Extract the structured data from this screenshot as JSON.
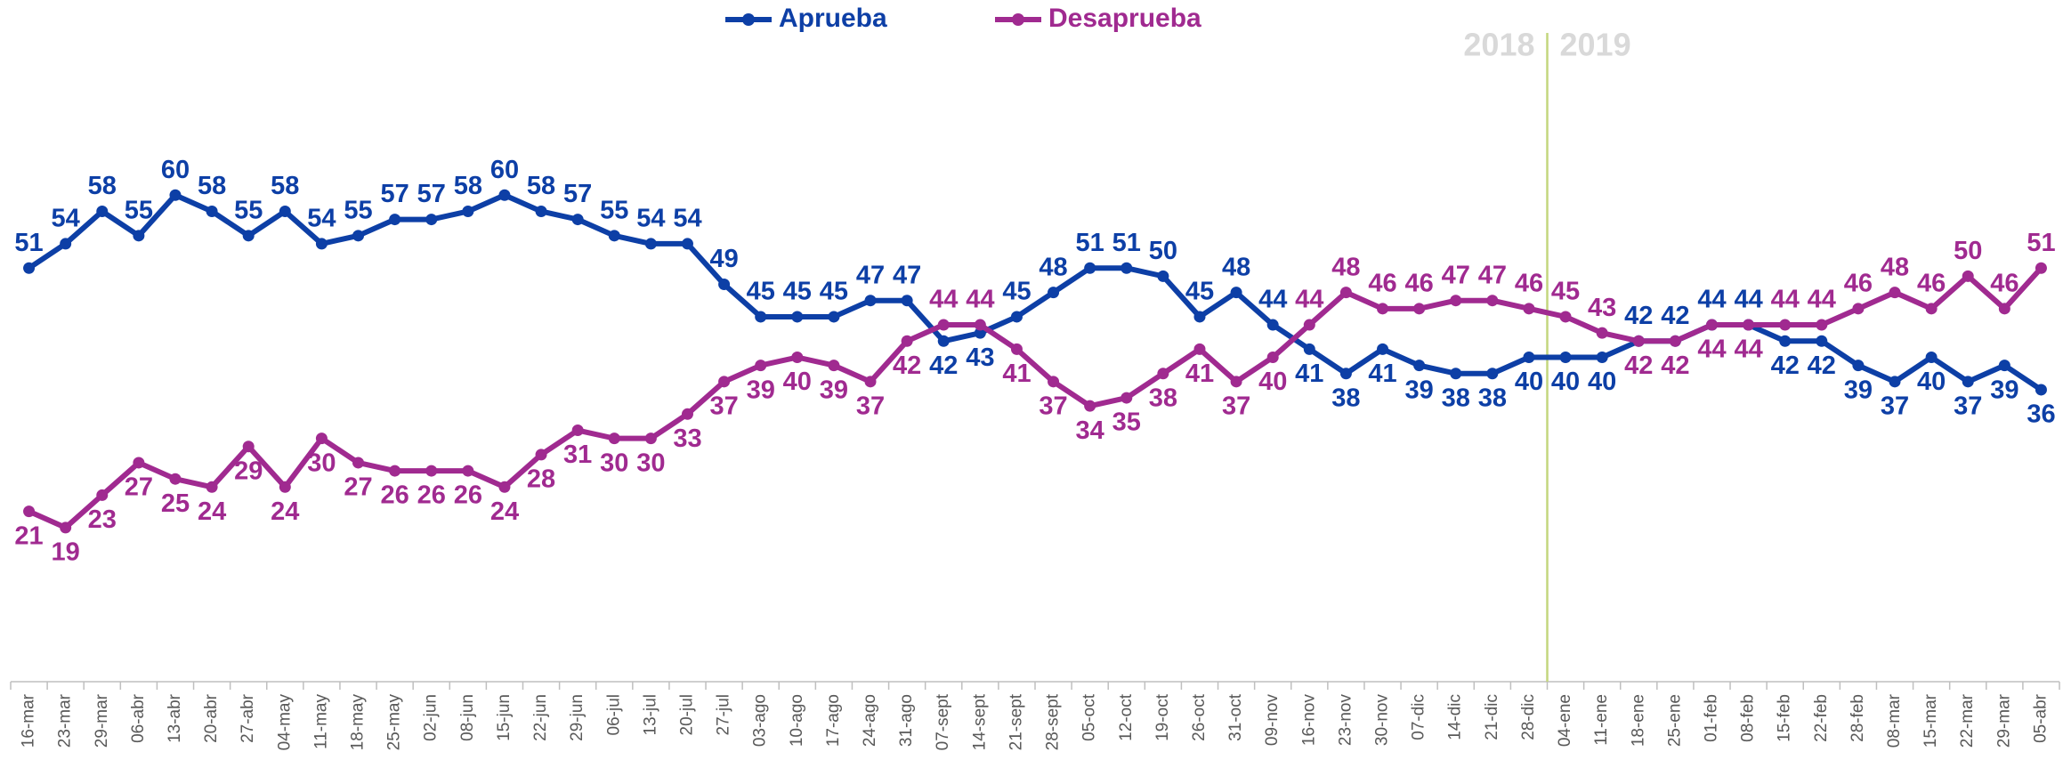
{
  "chart_data": {
    "type": "line",
    "categories": [
      "16-mar",
      "23-mar",
      "29-mar",
      "06-abr",
      "13-abr",
      "20-abr",
      "27-abr",
      "04-may",
      "11-may",
      "18-may",
      "25-may",
      "02-jun",
      "08-jun",
      "15-jun",
      "22-jun",
      "29-jun",
      "06-jul",
      "13-jul",
      "20-jul",
      "27-jul",
      "03-ago",
      "10-ago",
      "17-ago",
      "24-ago",
      "31-ago",
      "07-sept",
      "14-sept",
      "21-sept",
      "28-sept",
      "05-oct",
      "12-oct",
      "19-oct",
      "26-oct",
      "31-oct",
      "09-nov",
      "16-nov",
      "23-nov",
      "30-nov",
      "07-dic",
      "14-dic",
      "21-dic",
      "28-dic",
      "04-ene",
      "11-ene",
      "18-ene",
      "25-ene",
      "01-feb",
      "08-feb",
      "15-feb",
      "22-feb",
      "28-feb",
      "08-mar",
      "15-mar",
      "22-mar",
      "29-mar",
      "05-abr"
    ],
    "series": [
      {
        "name": "Aprueba",
        "color": "#0d3fa6",
        "values": [
          51,
          54,
          58,
          55,
          60,
          58,
          55,
          58,
          54,
          55,
          57,
          57,
          58,
          60,
          58,
          57,
          55,
          54,
          54,
          49,
          45,
          45,
          45,
          47,
          47,
          42,
          43,
          45,
          48,
          51,
          51,
          50,
          45,
          48,
          44,
          41,
          38,
          41,
          39,
          38,
          38,
          40,
          40,
          40,
          42,
          42,
          44,
          44,
          42,
          42,
          39,
          37,
          40,
          37,
          39,
          36
        ]
      },
      {
        "name": "Desaprueba",
        "color": "#a02a90",
        "values": [
          21,
          19,
          23,
          27,
          25,
          24,
          29,
          24,
          30,
          27,
          26,
          26,
          26,
          24,
          28,
          31,
          30,
          30,
          33,
          37,
          39,
          40,
          39,
          37,
          42,
          44,
          44,
          41,
          37,
          34,
          35,
          38,
          41,
          37,
          40,
          44,
          48,
          46,
          46,
          47,
          47,
          46,
          45,
          43,
          42,
          42,
          44,
          44,
          44,
          44,
          46,
          48,
          46,
          50,
          46,
          51
        ]
      }
    ],
    "annotations": [
      "2018",
      "2019"
    ],
    "ylim": [
      0,
      80
    ],
    "grid": false,
    "legend": "top"
  }
}
